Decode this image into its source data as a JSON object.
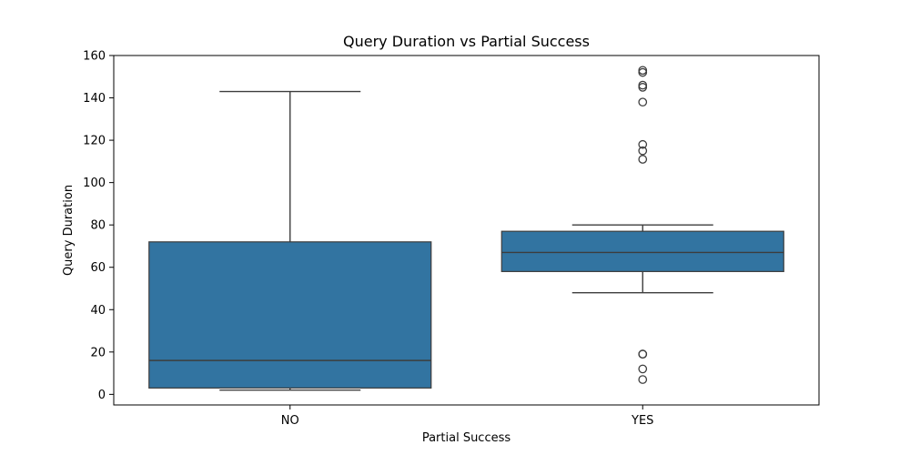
{
  "chart_data": {
    "type": "box",
    "title": "Query Duration vs Partial Success",
    "xlabel": "Partial Success",
    "ylabel": "Query Duration",
    "ylim": [
      -5,
      160
    ],
    "yticks": [
      0,
      20,
      40,
      60,
      80,
      100,
      120,
      140,
      160
    ],
    "grid": false,
    "box_color": "#3274a1",
    "line_color": "#3d3d3d",
    "categories": [
      "NO",
      "YES"
    ],
    "boxes": [
      {
        "category": "NO",
        "whisker_low": 2,
        "q1": 3,
        "median": 16,
        "q3": 72,
        "whisker_high": 143,
        "outliers": []
      },
      {
        "category": "YES",
        "whisker_low": 48,
        "q1": 58,
        "median": 67,
        "q3": 77,
        "whisker_high": 80,
        "outliers": [
          7,
          12,
          19,
          19,
          111,
          115,
          118,
          138,
          145,
          146,
          152,
          153
        ]
      }
    ]
  }
}
